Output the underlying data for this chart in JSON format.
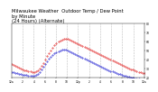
{
  "title": "Milwaukee Weather  Outdoor Temp / Dew Point\nby Minute\n(24 Hours) (Alternate)",
  "title_fontsize": 3.8,
  "bg_color": "#ffffff",
  "grid_color": "#aaaaaa",
  "temp_color": "#dd0000",
  "dew_color": "#0000cc",
  "ylim": [
    20,
    80
  ],
  "xlim": [
    0,
    1440
  ],
  "temp_data": [
    35,
    34,
    33,
    32,
    31,
    30,
    29,
    28,
    28,
    27,
    27,
    26,
    26,
    27,
    28,
    30,
    33,
    36,
    40,
    44,
    47,
    50,
    53,
    56,
    58,
    60,
    61,
    62,
    63,
    63,
    63,
    62,
    61,
    60,
    59,
    58,
    57,
    56,
    55,
    54,
    53,
    52,
    51,
    50,
    49,
    48,
    47,
    46,
    45,
    44,
    43,
    42,
    41,
    40,
    39,
    38,
    37,
    36,
    35,
    34,
    33,
    32,
    31,
    30,
    29,
    29,
    28,
    27,
    26,
    26,
    25,
    25
  ],
  "dew_data": [
    26,
    26,
    25,
    25,
    24,
    24,
    23,
    23,
    23,
    22,
    22,
    22,
    22,
    23,
    24,
    26,
    29,
    32,
    35,
    38,
    41,
    43,
    45,
    47,
    48,
    49,
    50,
    51,
    51,
    51,
    50,
    49,
    48,
    47,
    46,
    45,
    44,
    43,
    42,
    41,
    40,
    39,
    38,
    37,
    36,
    35,
    34,
    33,
    32,
    31,
    30,
    29,
    28,
    27,
    27,
    26,
    25,
    24,
    24,
    23,
    22,
    22,
    21,
    21,
    20,
    20,
    19,
    19,
    19,
    18,
    18,
    17
  ],
  "xtick_positions": [
    0,
    120,
    240,
    360,
    480,
    600,
    720,
    840,
    960,
    1080,
    1200,
    1320,
    1440
  ],
  "xtick_labels": [
    "12a",
    "2",
    "4",
    "6",
    "8",
    "10",
    "12p",
    "2",
    "4",
    "6",
    "8",
    "10",
    "12a"
  ],
  "ytick_positions": [
    20,
    30,
    40,
    50,
    60,
    70,
    80
  ],
  "ytick_labels": [
    "20",
    "30",
    "40",
    "50",
    "60",
    "70",
    "80"
  ],
  "vgrid_positions": [
    120,
    240,
    360,
    480,
    600,
    720,
    840,
    960,
    1080,
    1200,
    1320
  ]
}
